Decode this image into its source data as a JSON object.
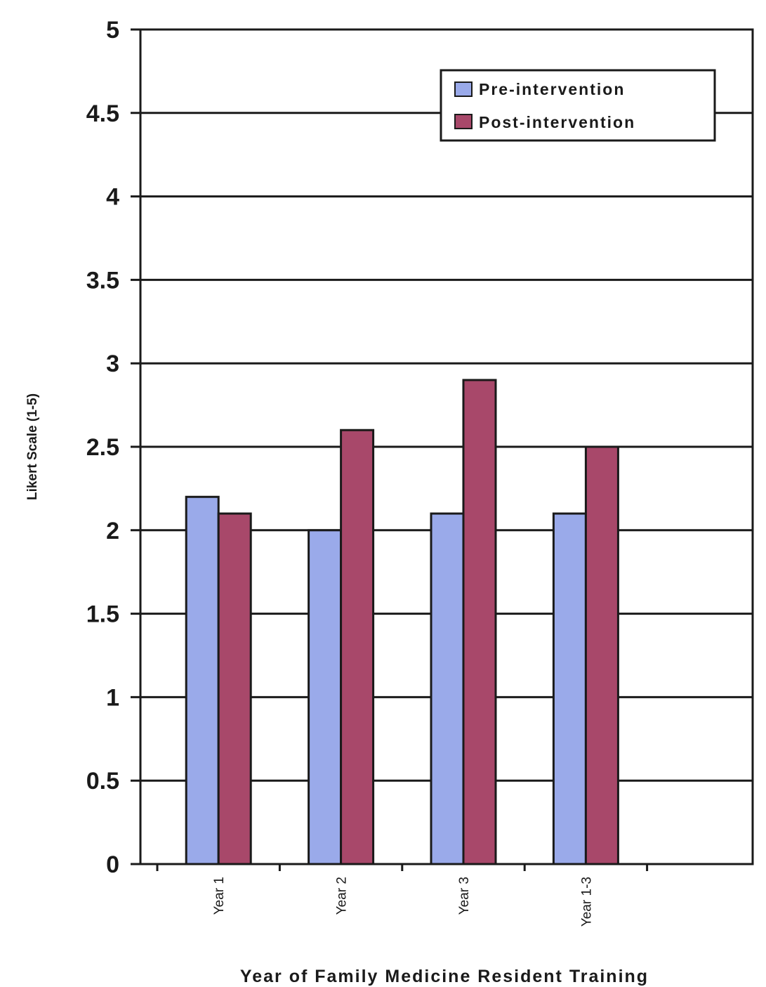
{
  "chart_data": {
    "type": "bar",
    "categories": [
      "Year 1",
      "Year 2",
      "Year 3",
      "Year 1-3"
    ],
    "series": [
      {
        "name": "Pre-intervention",
        "values": [
          2.2,
          2.0,
          2.1,
          2.1
        ],
        "color": "#9aaaea"
      },
      {
        "name": "Post-intervention",
        "values": [
          2.1,
          2.6,
          2.9,
          2.5
        ],
        "color": "#a8486a"
      }
    ],
    "title": "",
    "xlabel": "Year of Family Medicine Resident Training",
    "ylabel": "Likert Scale (1-5)",
    "ylim": [
      0,
      5
    ],
    "yticks": [
      "0",
      "0.5",
      "1",
      "1.5",
      "2",
      "2.5",
      "3",
      "3.5",
      "4",
      "4.5",
      "5"
    ],
    "grid": true,
    "legend_position": "top-right"
  }
}
